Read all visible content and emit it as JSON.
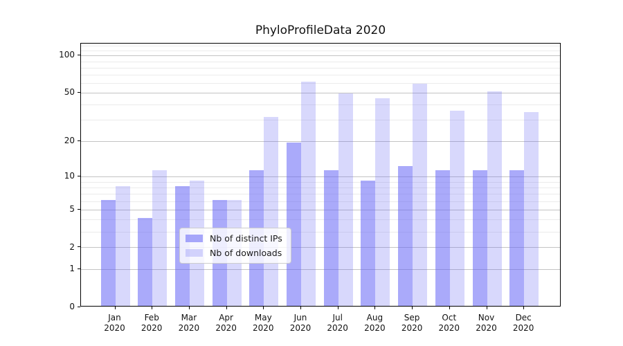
{
  "chart_data": {
    "type": "bar",
    "title": "PhyloProfileData 2020",
    "categories": [
      "Jan",
      "Feb",
      "Mar",
      "Apr",
      "May",
      "Jun",
      "Jul",
      "Aug",
      "Sep",
      "Oct",
      "Nov",
      "Dec"
    ],
    "year_label": "2020",
    "series": [
      {
        "name": "Nb of distinct IPs",
        "color": "rgba(101,101,245,0.55)",
        "values": [
          6,
          4,
          8,
          6,
          11,
          19,
          11,
          9,
          12,
          11,
          11,
          11
        ]
      },
      {
        "name": "Nb of downloads",
        "color": "rgba(101,101,245,0.25)",
        "values": [
          8,
          11,
          9,
          6,
          31,
          60,
          48,
          44,
          58,
          35,
          50,
          34
        ]
      }
    ],
    "xlabel": "",
    "ylabel": "",
    "yscale": "log1p",
    "ylim": [
      0,
      125
    ],
    "yticks": [
      0,
      1,
      2,
      5,
      10,
      20,
      50,
      100
    ],
    "yticks_minor": [
      3,
      4,
      6,
      7,
      8,
      9,
      30,
      40,
      60,
      70,
      80,
      90,
      110,
      120
    ],
    "grid": true,
    "legend_position": "inside-bottom-center"
  },
  "style": {
    "major_grid_color": "#c3c3c3",
    "minor_grid_color": "#ebebeb",
    "spine_color": "#000000",
    "text_color": "#111111",
    "legend_bg": "rgba(255,255,255,0.8)",
    "legend_border_color": "#cccccc"
  }
}
